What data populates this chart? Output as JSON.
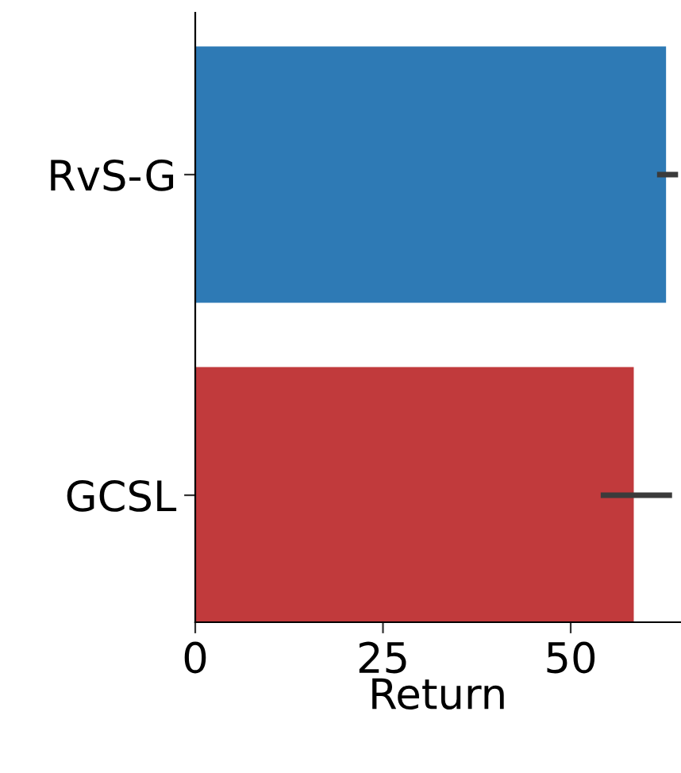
{
  "chart_data": {
    "type": "bar",
    "orientation": "horizontal",
    "xlabel": "Return",
    "categories": [
      "RvS-G",
      "GCSL"
    ],
    "values": [
      62.7,
      58.4
    ],
    "colors": [
      "#2e7ab5",
      "#c13a3c"
    ],
    "errors": [
      [
        61.5,
        64.3
      ],
      [
        54.0,
        63.5
      ]
    ],
    "xlim": [
      0,
      64.6
    ],
    "xticks": [
      0,
      25,
      50
    ],
    "grid": false
  }
}
